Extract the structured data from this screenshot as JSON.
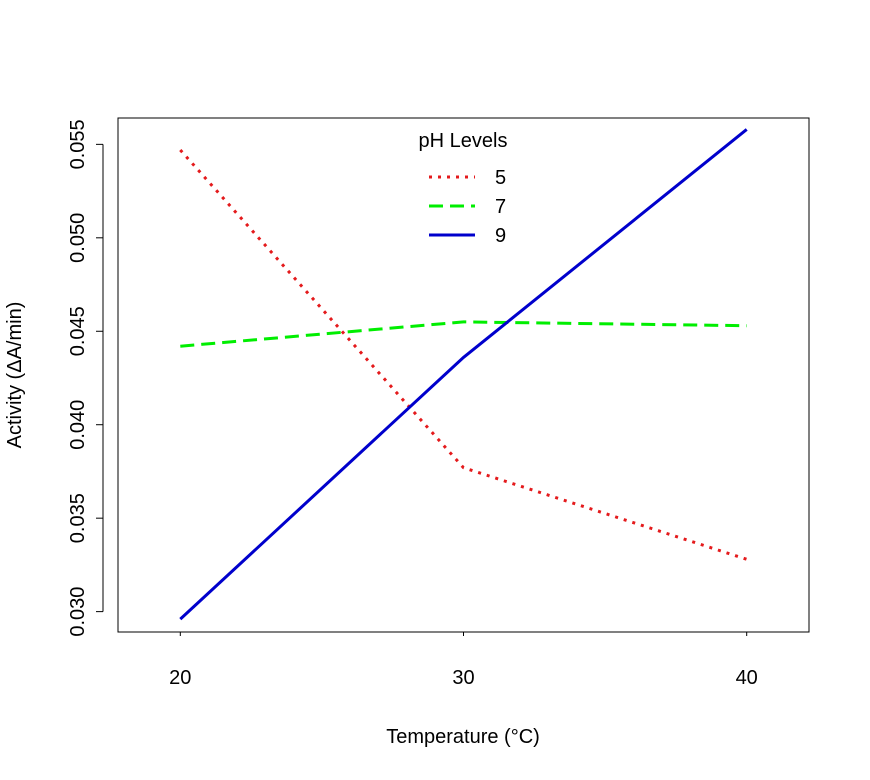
{
  "chart_data": {
    "type": "line",
    "title": "",
    "xlabel": "Temperature (°C)",
    "ylabel": "Activity (ΔA/min)",
    "xlim": [
      17.8,
      42.2
    ],
    "ylim": [
      0.02891,
      0.05641
    ],
    "xticks": [
      20,
      30,
      40
    ],
    "xtick_labels": [
      "20",
      "30",
      "40"
    ],
    "yticks": [
      0.03,
      0.035,
      0.04,
      0.045,
      0.05,
      0.055
    ],
    "ytick_labels": [
      "0.030",
      "0.035",
      "0.040",
      "0.045",
      "0.050",
      "0.055"
    ],
    "grid": false,
    "legend": {
      "title": "pH Levels",
      "position": "top-center"
    },
    "series": [
      {
        "name": "5",
        "x": [
          20,
          30,
          40
        ],
        "y": [
          0.0547,
          0.0377,
          0.0328
        ],
        "color": "#e41a1c",
        "dash": "dotted"
      },
      {
        "name": "7",
        "x": [
          20,
          30,
          40
        ],
        "y": [
          0.0442,
          0.0455,
          0.0453
        ],
        "color": "#00ee00",
        "dash": "dashed"
      },
      {
        "name": "9",
        "x": [
          20,
          30,
          40
        ],
        "y": [
          0.0296,
          0.0436,
          0.0558
        ],
        "color": "#0000cc",
        "dash": "solid"
      }
    ]
  }
}
